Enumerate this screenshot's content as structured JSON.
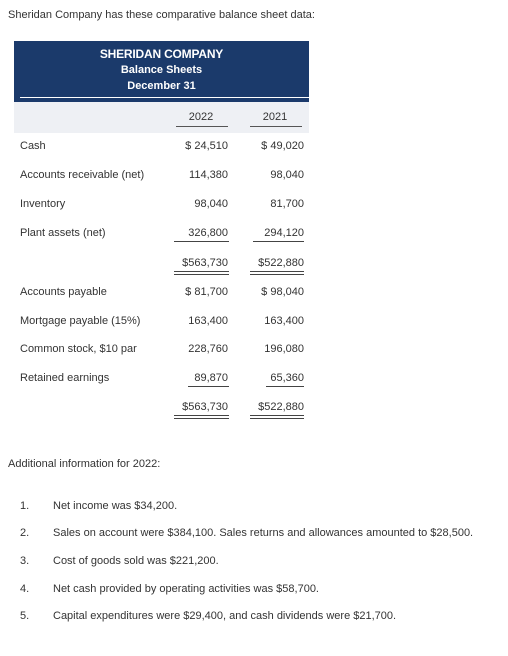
{
  "intro": "Sheridan Company has these comparative balance sheet data:",
  "header": {
    "company": "SHERIDAN COMPANY",
    "statement": "Balance Sheets",
    "date": "December 31"
  },
  "years": [
    "2022",
    "2021"
  ],
  "assets": [
    {
      "label": "Cash",
      "v2022": "$ 24,510",
      "v2021": "$ 49,020"
    },
    {
      "label": "Accounts receivable (net)",
      "v2022": "114,380",
      "v2021": "98,040"
    },
    {
      "label": "Inventory",
      "v2022": "98,040",
      "v2021": "81,700"
    },
    {
      "label": "Plant assets (net)",
      "v2022": "326,800",
      "v2021": "294,120"
    }
  ],
  "asset_total": {
    "v2022": "$563,730",
    "v2021": "$522,880"
  },
  "liabilities": [
    {
      "label": "Accounts payable",
      "v2022": "$ 81,700",
      "v2021": "$ 98,040"
    },
    {
      "label": "Mortgage payable (15%)",
      "v2022": "163,400",
      "v2021": "163,400"
    },
    {
      "label": "Common stock, $10 par",
      "v2022": "228,760",
      "v2021": "196,080"
    },
    {
      "label": "Retained earnings",
      "v2022": "89,870",
      "v2021": "65,360"
    }
  ],
  "liab_total": {
    "v2022": "$563,730",
    "v2021": "$522,880"
  },
  "additional": {
    "heading": "Additional information for 2022:",
    "items": [
      {
        "n": "1.",
        "text": "Net income was $34,200."
      },
      {
        "n": "2.",
        "text": "Sales on account were $384,100. Sales returns and allowances amounted to $28,500."
      },
      {
        "n": "3.",
        "text": "Cost of goods sold was $221,200."
      },
      {
        "n": "4.",
        "text": "Net cash provided by operating activities was $58,700."
      },
      {
        "n": "5.",
        "text": "Capital expenditures were $29,400, and cash dividends were $21,700."
      }
    ]
  }
}
